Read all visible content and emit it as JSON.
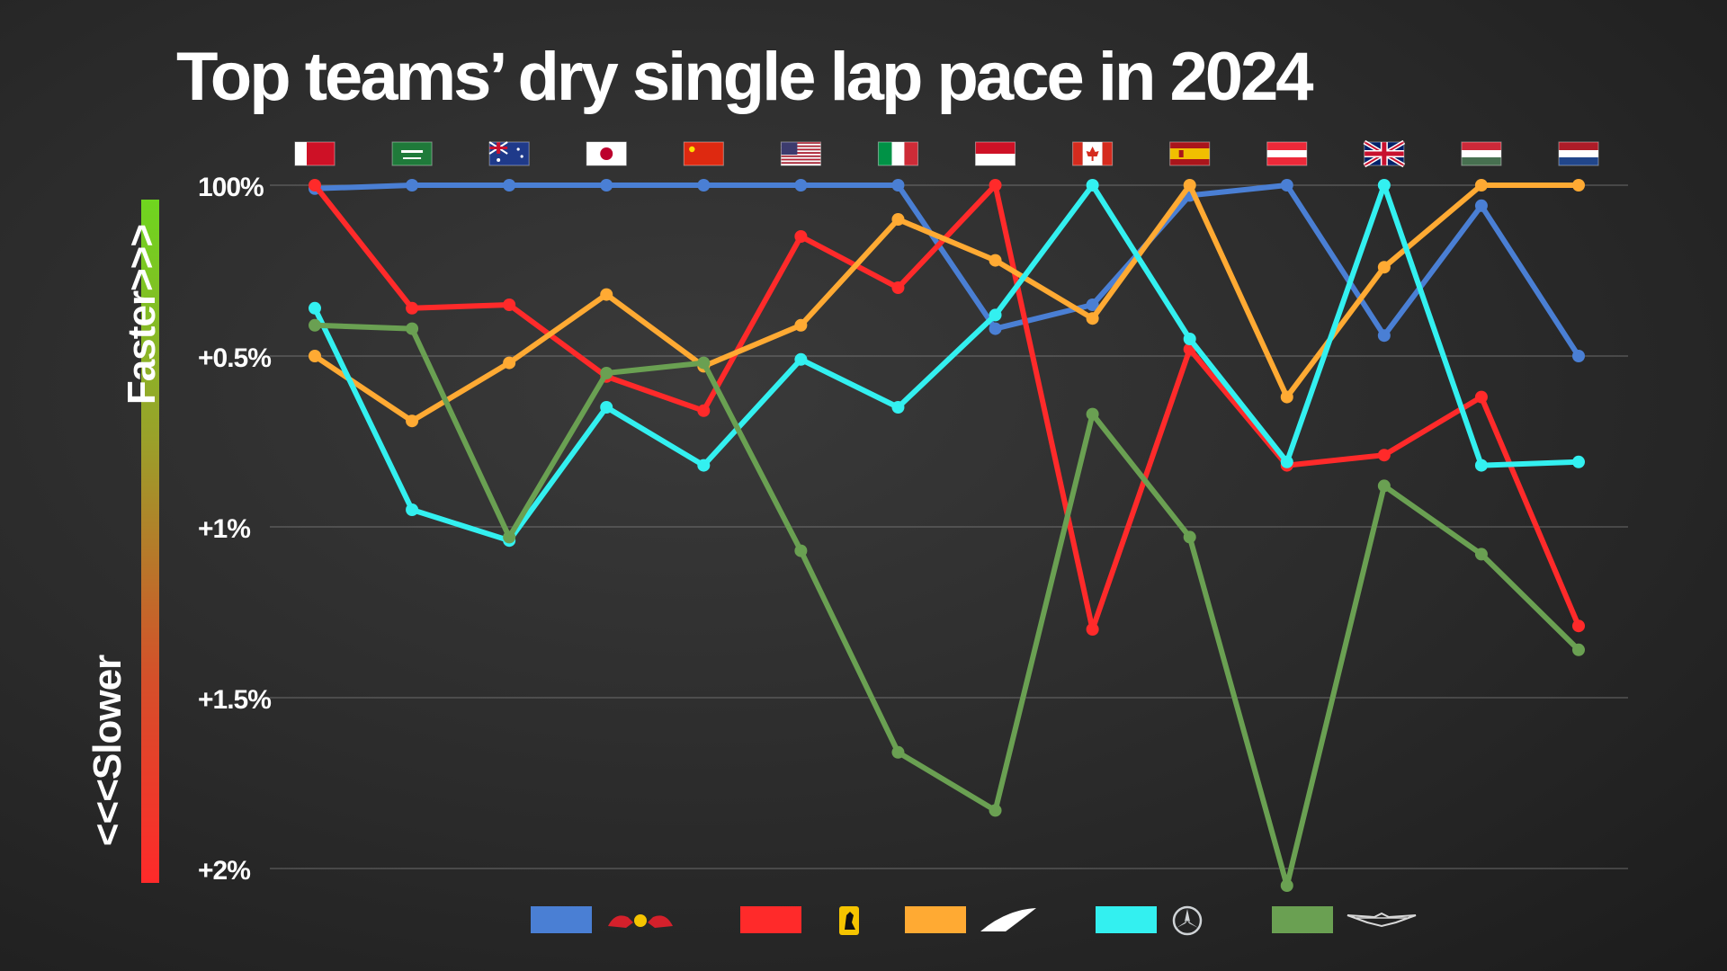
{
  "title": "Top teams’ dry single lap pace in 2024",
  "axis_side_labels": {
    "top": "Faster>>>",
    "bottom": "<<<Slower"
  },
  "chart_data": {
    "type": "line",
    "title": "Top teams’ dry single lap pace in 2024",
    "xlabel": "",
    "ylabel": "",
    "y_tick_labels": [
      "100%",
      "+0.5%",
      "+1%",
      "+1.5%",
      "+2%"
    ],
    "y_ticks": [
      0,
      0.5,
      1.0,
      1.5,
      2.0
    ],
    "ylim": [
      0,
      2.0
    ],
    "y_inverted": true,
    "grid": true,
    "x": [
      "Bahrain",
      "Saudi Arabia",
      "Australia",
      "Japan",
      "China",
      "United States",
      "Italy",
      "Monaco",
      "Canada",
      "Spain",
      "Austria",
      "Great Britain",
      "Hungary",
      "Netherlands"
    ],
    "series": [
      {
        "team": "Red Bull",
        "color": "#4a7fd4",
        "values": [
          0.01,
          0.0,
          0.0,
          0.0,
          0.0,
          0.0,
          0.0,
          0.42,
          0.35,
          0.03,
          0.0,
          0.44,
          0.06,
          0.5
        ]
      },
      {
        "team": "Ferrari",
        "color": "#ff2a2a",
        "values": [
          0.0,
          0.36,
          0.35,
          0.56,
          0.66,
          0.15,
          0.3,
          0.0,
          1.3,
          0.48,
          0.82,
          0.79,
          0.62,
          1.29
        ]
      },
      {
        "team": "McLaren",
        "color": "#ffaa33",
        "values": [
          0.5,
          0.69,
          0.52,
          0.32,
          0.53,
          0.41,
          0.1,
          0.22,
          0.39,
          0.0,
          0.62,
          0.24,
          0.0,
          0.0
        ]
      },
      {
        "team": "Mercedes",
        "color": "#33f0f0",
        "values": [
          0.36,
          0.95,
          1.04,
          0.65,
          0.82,
          0.51,
          0.65,
          0.38,
          0.0,
          0.45,
          0.81,
          0.0,
          0.82,
          0.81
        ]
      },
      {
        "team": "Aston Martin",
        "color": "#6aa052",
        "values": [
          0.41,
          0.42,
          1.03,
          0.55,
          0.52,
          1.07,
          1.66,
          1.83,
          0.67,
          1.03,
          2.05,
          0.88,
          1.08,
          1.36
        ]
      }
    ],
    "flags": [
      "bahrain-flag",
      "saudi-arabia-flag",
      "australia-flag",
      "japan-flag",
      "china-flag",
      "usa-flag",
      "italy-flag",
      "monaco-flag",
      "canada-flag",
      "spain-flag",
      "austria-flag",
      "great-britain-flag",
      "hungary-flag",
      "netherlands-flag"
    ],
    "legend": [
      {
        "team": "Red Bull",
        "color": "#4a7fd4",
        "icon": "red-bull-logo"
      },
      {
        "team": "Ferrari",
        "color": "#ff2a2a",
        "icon": "ferrari-logo"
      },
      {
        "team": "McLaren",
        "color": "#ffaa33",
        "icon": "mclaren-logo"
      },
      {
        "team": "Mercedes",
        "color": "#33f0f0",
        "icon": "mercedes-logo"
      },
      {
        "team": "Aston Martin",
        "color": "#6aa052",
        "icon": "aston-martin-logo"
      }
    ]
  }
}
